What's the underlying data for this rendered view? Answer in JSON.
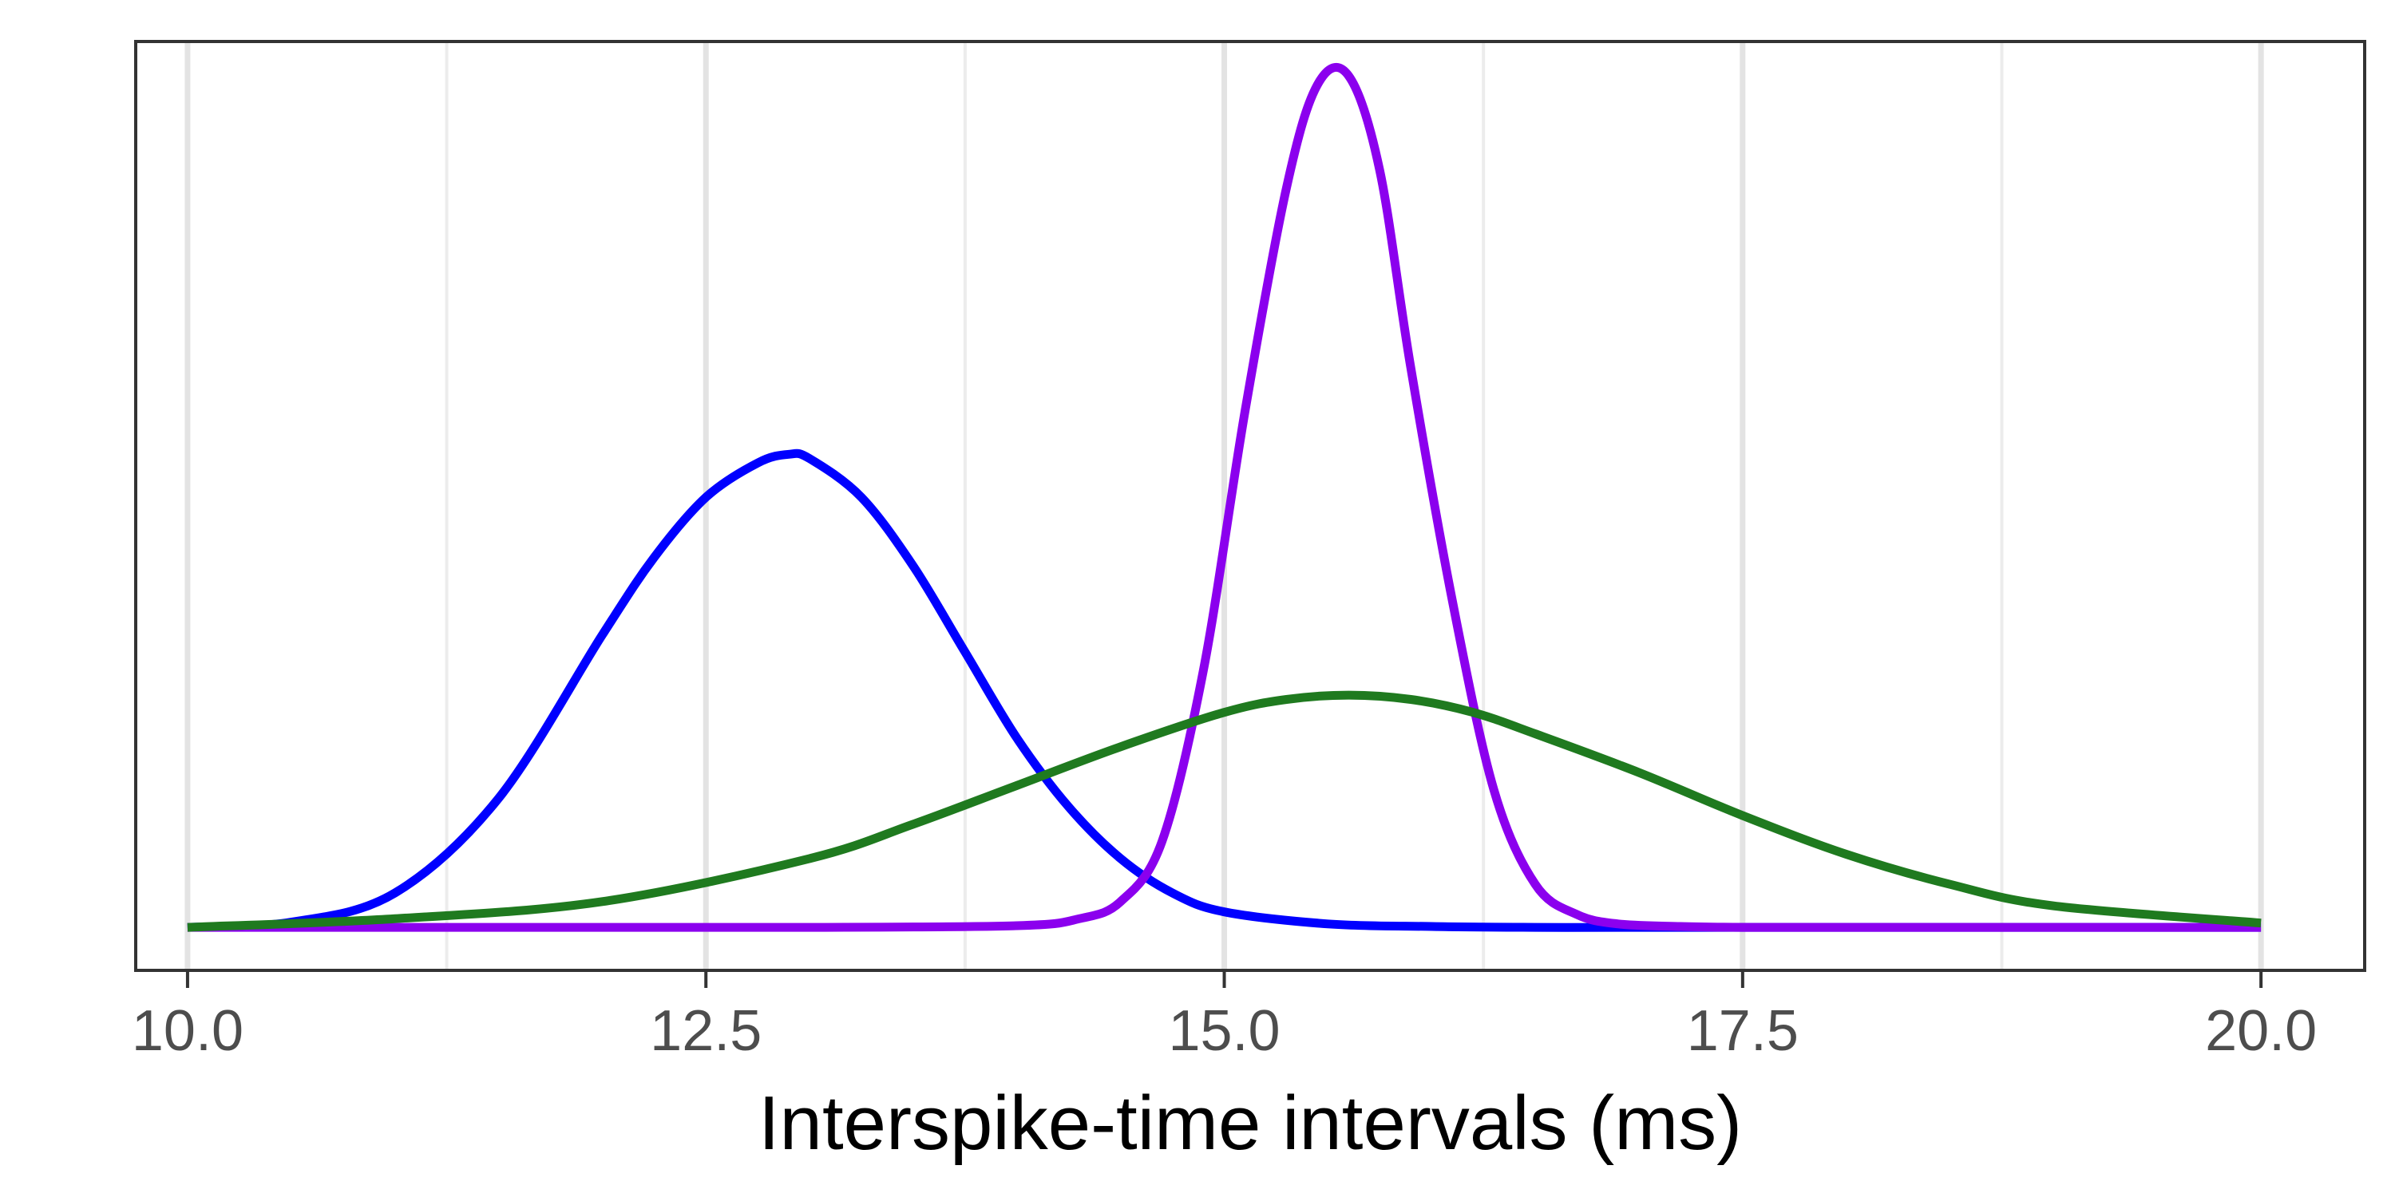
{
  "chart_data": {
    "type": "line",
    "title": "",
    "xlabel": "Interspike-time intervals (ms)",
    "ylabel": "",
    "xlim": [
      9.75,
      20.5
    ],
    "ylim": [
      -0.05,
      1.03
    ],
    "x_ticks": [
      "10.0",
      "12.5",
      "15.0",
      "17.5",
      "20.0"
    ],
    "x_tick_values": [
      10.0,
      12.5,
      15.0,
      17.5,
      20.0
    ],
    "x_minor_gridlines": [
      11.25,
      13.75,
      16.25,
      18.75
    ],
    "grid": "vertical",
    "legend": "none",
    "series": [
      {
        "color": "#0000ff",
        "x": [
          10.0,
          10.5,
          11.0,
          11.5,
          12.0,
          12.25,
          12.5,
          12.75,
          12.9,
          13.0,
          13.25,
          13.5,
          13.75,
          14.0,
          14.25,
          14.5,
          14.75,
          15.0,
          15.5,
          16.0,
          16.5,
          17.0,
          18.0,
          19.0,
          20.0
        ],
        "y": [
          0.0,
          0.006,
          0.04,
          0.15,
          0.34,
          0.43,
          0.5,
          0.54,
          0.55,
          0.545,
          0.5,
          0.42,
          0.32,
          0.22,
          0.14,
          0.08,
          0.04,
          0.018,
          0.004,
          0.001,
          0.0,
          0.0,
          0.0,
          0.0,
          0.0
        ]
      },
      {
        "color": "#8b00ee",
        "x": [
          10.0,
          11.0,
          12.0,
          13.0,
          14.0,
          14.3,
          14.5,
          14.7,
          14.9,
          15.1,
          15.3,
          15.45,
          15.6,
          15.75,
          15.9,
          16.1,
          16.3,
          16.5,
          16.7,
          16.9,
          17.2,
          17.5,
          18.0,
          19.0,
          20.0
        ],
        "y": [
          0.0,
          0.0,
          0.0,
          0.0,
          0.002,
          0.01,
          0.03,
          0.1,
          0.3,
          0.6,
          0.86,
          0.98,
          0.99,
          0.88,
          0.65,
          0.38,
          0.16,
          0.05,
          0.015,
          0.004,
          0.001,
          0.0,
          0.0,
          0.0,
          0.0
        ]
      },
      {
        "color": "#1f7a1f",
        "x": [
          10.0,
          11.0,
          12.0,
          13.0,
          13.5,
          14.0,
          14.5,
          15.0,
          15.3,
          15.6,
          15.9,
          16.2,
          16.5,
          17.0,
          17.5,
          18.0,
          18.5,
          19.0,
          20.0
        ],
        "y": [
          0.0,
          0.01,
          0.03,
          0.08,
          0.12,
          0.165,
          0.21,
          0.25,
          0.265,
          0.27,
          0.265,
          0.25,
          0.225,
          0.18,
          0.13,
          0.085,
          0.05,
          0.025,
          0.005
        ]
      }
    ]
  }
}
